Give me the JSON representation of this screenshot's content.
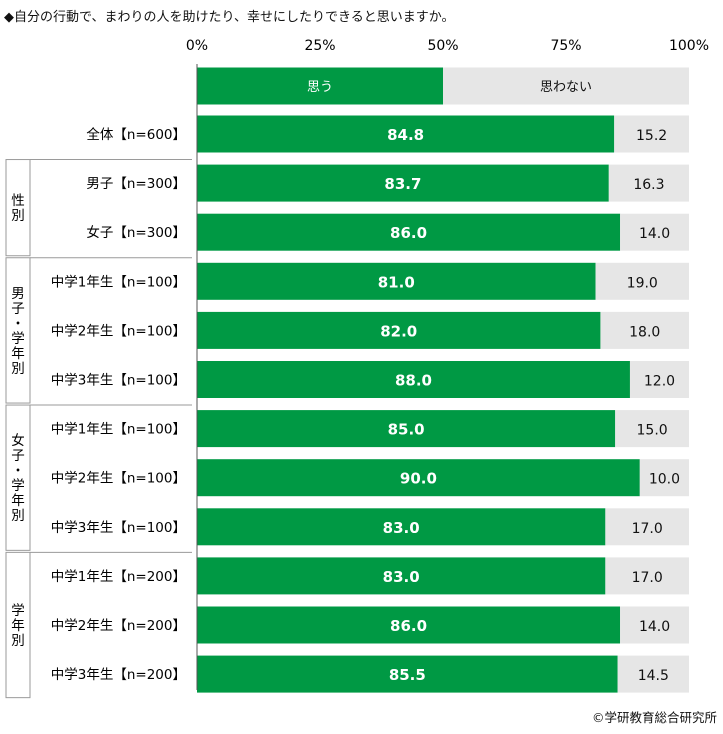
{
  "header": {
    "title": "◆自分の行動で、まわりの人を助けたり、幸せにしたりできると思いますか。"
  },
  "source": "©学研教育総合研究所",
  "colors": {
    "yes": "#009944",
    "no": "#e6e6e6",
    "axis": "#555555",
    "group_border": "#9a9a9a"
  },
  "chart_data": {
    "type": "bar",
    "orientation": "horizontal",
    "stacked": true,
    "xlim": [
      0,
      100
    ],
    "x_ticks": [
      "0%",
      "25%",
      "50%",
      "75%",
      "100%"
    ],
    "legend": {
      "position": "top",
      "yes": "思う",
      "no": "思わない"
    },
    "groups": [
      {
        "label": "",
        "rows": [
          0
        ]
      },
      {
        "label": "性別",
        "rows": [
          1,
          2
        ]
      },
      {
        "label": "男子・学年別",
        "rows": [
          3,
          4,
          5
        ]
      },
      {
        "label": "女子・学年別",
        "rows": [
          6,
          7,
          8
        ]
      },
      {
        "label": "学年別",
        "rows": [
          9,
          10,
          11
        ]
      }
    ],
    "categories": [
      "全体【n=600】",
      "男子【n=300】",
      "女子【n=300】",
      "中学1年生【n=100】",
      "中学2年生【n=100】",
      "中学3年生【n=100】",
      "中学1年生【n=100】",
      "中学2年生【n=100】",
      "中学3年生【n=100】",
      "中学1年生【n=200】",
      "中学2年生【n=200】",
      "中学3年生【n=200】"
    ],
    "series": [
      {
        "name": "思う",
        "values": [
          84.8,
          83.7,
          86.0,
          81.0,
          82.0,
          88.0,
          85.0,
          90.0,
          83.0,
          83.0,
          86.0,
          85.5
        ],
        "labels": [
          "84.8",
          "83.7",
          "86.0",
          "81.0",
          "82.0",
          "88.0",
          "85.0",
          "90.0",
          "83.0",
          "83.0",
          "86.0",
          "85.5"
        ]
      },
      {
        "name": "思わない",
        "values": [
          15.2,
          16.3,
          14.0,
          19.0,
          18.0,
          12.0,
          15.0,
          10.0,
          17.0,
          17.0,
          14.0,
          14.5
        ],
        "labels": [
          "15.2",
          "16.3",
          "14.0",
          "19.0",
          "18.0",
          "12.0",
          "15.0",
          "10.0",
          "17.0",
          "17.0",
          "14.0",
          "14.5"
        ]
      }
    ]
  }
}
